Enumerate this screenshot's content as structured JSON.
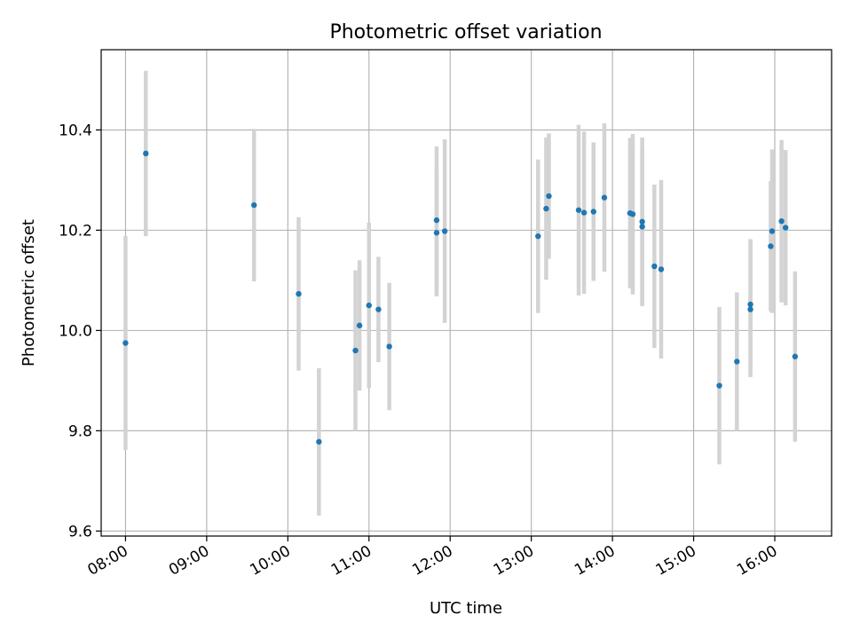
{
  "chart_data": {
    "type": "scatter",
    "title": "Photometric offset variation",
    "xlabel": "UTC time",
    "ylabel": "Photometric offset",
    "xlim": [
      "07:42",
      "16:42"
    ],
    "ylim": [
      9.59,
      10.56
    ],
    "grid": true,
    "x_ticks": [
      "08:00",
      "09:00",
      "10:00",
      "11:00",
      "12:00",
      "13:00",
      "14:00",
      "15:00",
      "16:00"
    ],
    "y_ticks": [
      "9.6",
      "9.8",
      "10.0",
      "10.2",
      "10.4"
    ],
    "colors": {
      "point": "#1f77b4",
      "errorbar": "#d3d3d3",
      "grid": "#b0b0b0"
    },
    "points": [
      {
        "x": "08:00",
        "y": 9.975,
        "err": 0.213
      },
      {
        "x": "08:15",
        "y": 10.353,
        "err": 0.165
      },
      {
        "x": "09:35",
        "y": 10.25,
        "err": 0.152
      },
      {
        "x": "10:08",
        "y": 10.073,
        "err": 0.153
      },
      {
        "x": "10:23",
        "y": 9.778,
        "err": 0.147
      },
      {
        "x": "10:50",
        "y": 9.96,
        "err": 0.16
      },
      {
        "x": "10:53",
        "y": 10.01,
        "err": 0.13
      },
      {
        "x": "11:00",
        "y": 10.05,
        "err": 0.165
      },
      {
        "x": "11:07",
        "y": 10.042,
        "err": 0.105
      },
      {
        "x": "11:15",
        "y": 9.968,
        "err": 0.127
      },
      {
        "x": "11:50",
        "y": 10.22,
        "err": 0.147
      },
      {
        "x": "11:50",
        "y": 10.195,
        "err": 0.127
      },
      {
        "x": "11:56",
        "y": 10.198,
        "err": 0.183
      },
      {
        "x": "13:05",
        "y": 10.188,
        "err": 0.153
      },
      {
        "x": "13:11",
        "y": 10.243,
        "err": 0.142
      },
      {
        "x": "13:13",
        "y": 10.268,
        "err": 0.125
      },
      {
        "x": "13:35",
        "y": 10.24,
        "err": 0.17
      },
      {
        "x": "13:39",
        "y": 10.235,
        "err": 0.162
      },
      {
        "x": "13:46",
        "y": 10.237,
        "err": 0.138
      },
      {
        "x": "13:54",
        "y": 10.265,
        "err": 0.148
      },
      {
        "x": "14:13",
        "y": 10.234,
        "err": 0.15
      },
      {
        "x": "14:15",
        "y": 10.232,
        "err": 0.16
      },
      {
        "x": "14:22",
        "y": 10.217,
        "err": 0.168
      },
      {
        "x": "14:22",
        "y": 10.207,
        "err": 0.158
      },
      {
        "x": "14:31",
        "y": 10.128,
        "err": 0.163
      },
      {
        "x": "14:36",
        "y": 10.122,
        "err": 0.178
      },
      {
        "x": "15:19",
        "y": 9.89,
        "err": 0.157
      },
      {
        "x": "15:32",
        "y": 9.938,
        "err": 0.138
      },
      {
        "x": "15:42",
        "y": 10.052,
        "err": 0.13
      },
      {
        "x": "15:42",
        "y": 10.042,
        "err": 0.135
      },
      {
        "x": "15:57",
        "y": 10.168,
        "err": 0.13
      },
      {
        "x": "15:58",
        "y": 10.198,
        "err": 0.163
      },
      {
        "x": "16:05",
        "y": 10.218,
        "err": 0.162
      },
      {
        "x": "16:08",
        "y": 10.205,
        "err": 0.155
      },
      {
        "x": "16:15",
        "y": 9.948,
        "err": 0.17
      }
    ]
  }
}
